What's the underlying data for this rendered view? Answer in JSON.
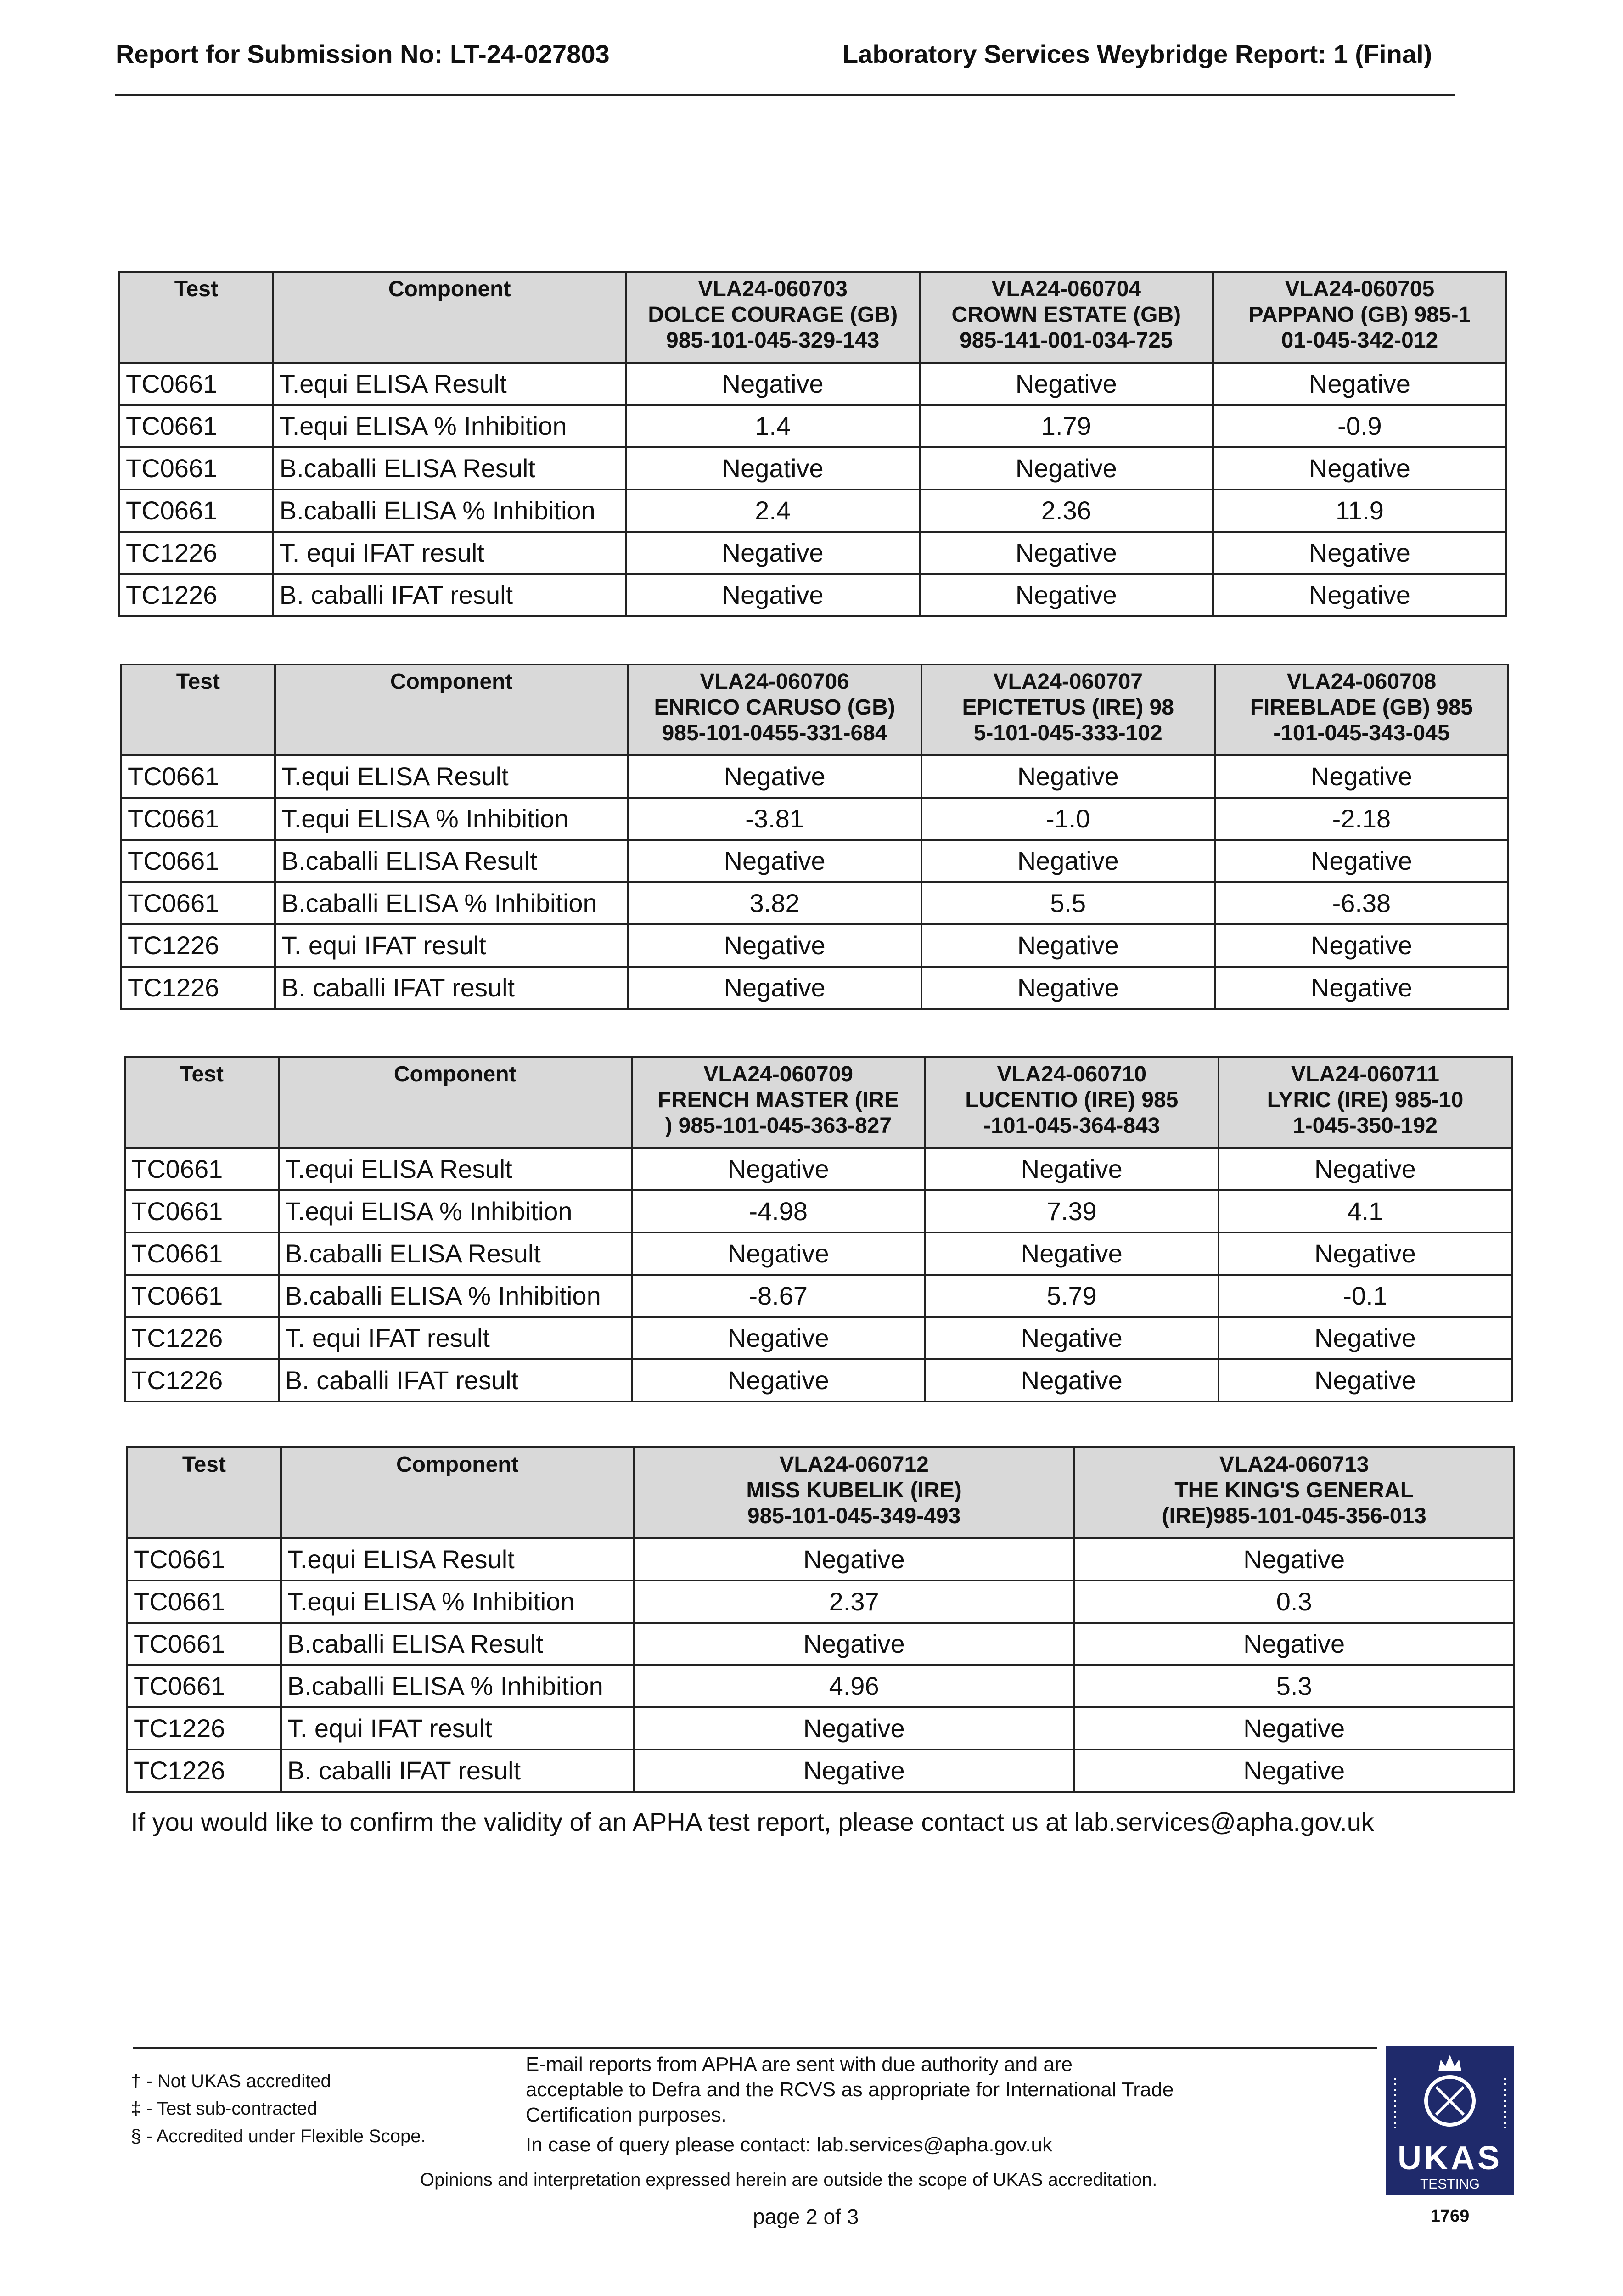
{
  "header": {
    "submission": "Report for Submission No: LT-24-027803",
    "lab": "Laboratory Services Weybridge Report: 1 (Final)"
  },
  "table_headers": {
    "test": "Test",
    "component": "Component"
  },
  "row_labels": [
    {
      "test": "TC0661",
      "component": "T.equi ELISA Result"
    },
    {
      "test": "TC0661",
      "component": "T.equi ELISA % Inhibition"
    },
    {
      "test": "TC0661",
      "component": "B.caballi ELISA Result"
    },
    {
      "test": "TC0661",
      "component": "B.caballi ELISA % Inhibition"
    },
    {
      "test": "TC1226",
      "component": "T. equi IFAT result"
    },
    {
      "test": "TC1226",
      "component": "B. caballi IFAT result"
    }
  ],
  "tables": [
    {
      "samples": [
        {
          "id": "VLA24-060703",
          "name": "DOLCE COURAGE (GB)",
          "chip": "985-101-045-329-143",
          "values": [
            "Negative",
            "1.4",
            "Negative",
            "2.4",
            "Negative",
            "Negative"
          ]
        },
        {
          "id": "VLA24-060704",
          "name": "CROWN ESTATE (GB)",
          "chip": "985-141-001-034-725",
          "values": [
            "Negative",
            "1.79",
            "Negative",
            "2.36",
            "Negative",
            "Negative"
          ]
        },
        {
          "id": "VLA24-060705",
          "name": "PAPPANO (GB) 985-1",
          "chip": "01-045-342-012",
          "values": [
            "Negative",
            "-0.9",
            "Negative",
            "11.9",
            "Negative",
            "Negative"
          ]
        }
      ]
    },
    {
      "samples": [
        {
          "id": "VLA24-060706",
          "name": "ENRICO CARUSO (GB)",
          "chip": "985-101-0455-331-684",
          "values": [
            "Negative",
            "-3.81",
            "Negative",
            "3.82",
            "Negative",
            "Negative"
          ]
        },
        {
          "id": "VLA24-060707",
          "name": "EPICTETUS (IRE) 98",
          "chip": "5-101-045-333-102",
          "values": [
            "Negative",
            "-1.0",
            "Negative",
            "5.5",
            "Negative",
            "Negative"
          ]
        },
        {
          "id": "VLA24-060708",
          "name": "FIREBLADE (GB) 985",
          "chip": "-101-045-343-045",
          "values": [
            "Negative",
            "-2.18",
            "Negative",
            "-6.38",
            "Negative",
            "Negative"
          ]
        }
      ]
    },
    {
      "samples": [
        {
          "id": "VLA24-060709",
          "name": "FRENCH MASTER (IRE",
          "chip": ") 985-101-045-363-827",
          "values": [
            "Negative",
            "-4.98",
            "Negative",
            "-8.67",
            "Negative",
            "Negative"
          ]
        },
        {
          "id": "VLA24-060710",
          "name": "LUCENTIO (IRE) 985",
          "chip": "-101-045-364-843",
          "values": [
            "Negative",
            "7.39",
            "Negative",
            "5.79",
            "Negative",
            "Negative"
          ]
        },
        {
          "id": "VLA24-060711",
          "name": "LYRIC (IRE) 985-10",
          "chip": "1-045-350-192",
          "values": [
            "Negative",
            "4.1",
            "Negative",
            "-0.1",
            "Negative",
            "Negative"
          ]
        }
      ]
    },
    {
      "samples": [
        {
          "id": "VLA24-060712",
          "name": "MISS KUBELIK (IRE)",
          "chip": "985-101-045-349-493",
          "values": [
            "Negative",
            "2.37",
            "Negative",
            "4.96",
            "Negative",
            "Negative"
          ]
        },
        {
          "id": "VLA24-060713",
          "name": "THE KING'S GENERAL",
          "chip": "(IRE)985-101-045-356-013",
          "values": [
            "Negative",
            "0.3",
            "Negative",
            "5.3",
            "Negative",
            "Negative"
          ]
        }
      ]
    }
  ],
  "validity_note": "If you would like to confirm the validity of an APHA test report, please contact us at lab.services@apha.gov.uk",
  "footnotes": [
    "† - Not UKAS accredited",
    "‡ - Test sub-contracted",
    "§ - Accredited under Flexible Scope."
  ],
  "email_notice": [
    "E-mail reports from APHA are sent with due authority and are",
    "acceptable to Defra and the RCVS as appropriate for International Trade",
    "Certification purposes."
  ],
  "query_contact": "In case of query please contact: lab.services@apha.gov.uk",
  "opinion_disclaimer": "Opinions and interpretation expressed herein are outside the scope of UKAS accreditation.",
  "page_number": "page 2 of 3",
  "ukas_logo": {
    "text": "UKAS",
    "sub": "TESTING",
    "number": "1769",
    "color": "#1f2a6b"
  }
}
